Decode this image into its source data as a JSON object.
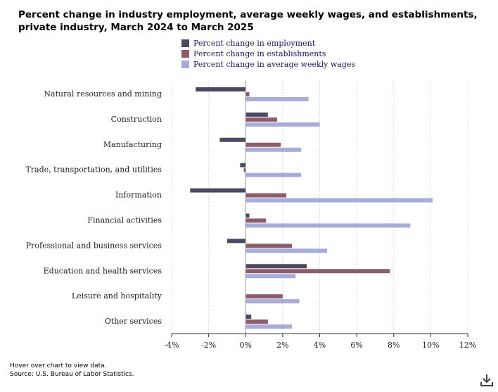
{
  "title": "Percent change in industry employment, average weekly wages, and establishments, private industry, March 2024 to March 2025",
  "footer": {
    "hover_note": "Hover over chart to view data.",
    "source": "Source: U.S. Bureau of Labor Statistics."
  },
  "download_icon": "download-icon",
  "chart_data": {
    "type": "bar",
    "orientation": "horizontal",
    "title": "Percent change in industry employment, average weekly wages, and establishments, private industry, March 2024 to March 2025",
    "categories": [
      "Natural resources and mining",
      "Construction",
      "Manufacturing",
      "Trade, transportation, and utilities",
      "Information",
      "Financial activities",
      "Professional and business services",
      "Education and health services",
      "Leisure and hospitality",
      "Other services"
    ],
    "series": [
      {
        "name": "Percent change in employment",
        "color": "#4b4861",
        "values": [
          -2.7,
          1.2,
          -1.4,
          -0.3,
          -3.0,
          0.2,
          -1.0,
          3.3,
          0.0,
          0.3
        ]
      },
      {
        "name": "Percent change in establishments",
        "color": "#8f5c6c",
        "values": [
          0.2,
          1.7,
          1.9,
          -0.1,
          2.2,
          1.1,
          2.5,
          7.8,
          2.0,
          1.2
        ]
      },
      {
        "name": "Percent change in average weekly wages",
        "color": "#a8acd8",
        "values": [
          3.4,
          4.0,
          3.0,
          3.0,
          10.1,
          8.9,
          4.4,
          2.7,
          2.9,
          2.5
        ]
      }
    ],
    "xlim": [
      -4,
      12
    ],
    "xticks": [
      -4,
      -2,
      0,
      2,
      4,
      6,
      8,
      10,
      12
    ],
    "tick_format": "%",
    "grid": "vertical dotted",
    "legend_position": "top"
  }
}
